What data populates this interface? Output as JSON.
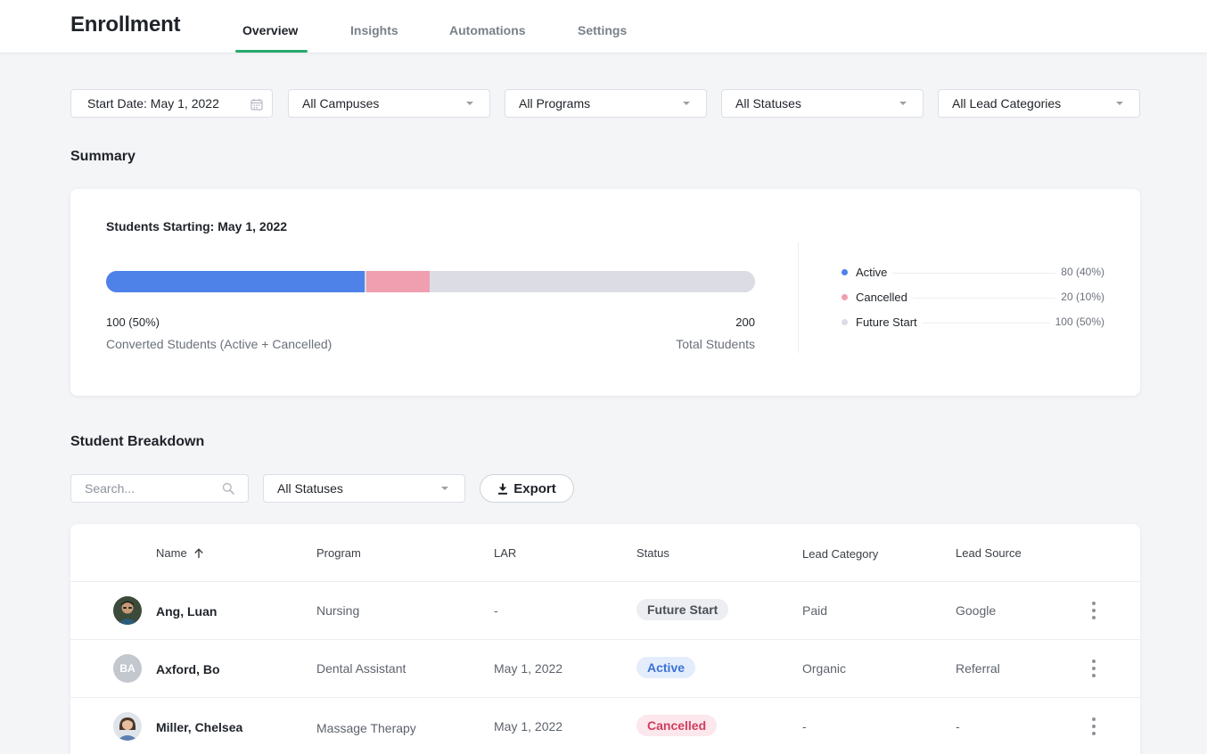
{
  "header": {
    "title": "Enrollment",
    "tabs": [
      {
        "label": "Overview",
        "active": true
      },
      {
        "label": "Insights",
        "active": false
      },
      {
        "label": "Automations",
        "active": false
      },
      {
        "label": "Settings",
        "active": false
      }
    ]
  },
  "filters": {
    "start_date": "Start Date: May 1, 2022",
    "campus": "All Campuses",
    "program": "All Programs",
    "status": "All Statuses",
    "lead_category": "All Lead Categories"
  },
  "summary": {
    "title": "Summary",
    "subtitle": "Students Starting: May 1, 2022",
    "converted_value": "100 (50%)",
    "converted_label": "Converted Students (Active + Cancelled)",
    "total_value": "200",
    "total_label": "Total Students",
    "bar": {
      "active_pct": 40,
      "cancelled_pct": 10,
      "future_pct": 50
    },
    "legend": [
      {
        "label": "Active",
        "value": "80 (40%)",
        "color": "#4e82e8"
      },
      {
        "label": "Cancelled",
        "value": "20 (10%)",
        "color": "#ef9fb0"
      },
      {
        "label": "Future Start",
        "value": "100 (50%)",
        "color": "#dcdde4"
      }
    ]
  },
  "breakdown": {
    "title": "Student Breakdown",
    "search_placeholder": "Search...",
    "status_filter": "All Statuses",
    "export_label": "Export",
    "columns": {
      "name": "Name",
      "program": "Program",
      "lar": "LAR",
      "status": "Status",
      "lead_category": "Lead Category",
      "lead_source": "Lead Source"
    },
    "rows": [
      {
        "name": "Ang, Luan",
        "avatar": "photo",
        "program": "Nursing",
        "lar": "-",
        "status": "Future Start",
        "lead_category": "Paid",
        "lead_source": "Google"
      },
      {
        "name": "Axford, Bo",
        "avatar": "BA",
        "program": "Dental Assistant",
        "lar": "May 1, 2022",
        "status": "Active",
        "lead_category": "Organic",
        "lead_source": "Referral"
      },
      {
        "name": "Miller, Chelsea",
        "avatar": "photo",
        "program": "Massage Therapy",
        "lar": "May 1, 2022",
        "status": "Cancelled",
        "lead_category": "-",
        "lead_source": "-"
      }
    ]
  },
  "colors": {
    "accent": "#27a86b",
    "active": "#4e82e8",
    "cancelled": "#ef9fb0",
    "future": "#dcdde4"
  }
}
